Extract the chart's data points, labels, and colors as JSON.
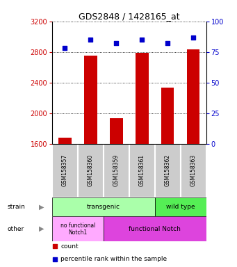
{
  "title": "GDS2848 / 1428165_at",
  "samples": [
    "GSM158357",
    "GSM158360",
    "GSM158359",
    "GSM158361",
    "GSM158362",
    "GSM158363"
  ],
  "counts": [
    1680,
    2750,
    1930,
    2790,
    2330,
    2830
  ],
  "percentiles": [
    78,
    85,
    82,
    85,
    82,
    87
  ],
  "ylim_left": [
    1600,
    3200
  ],
  "ylim_right": [
    0,
    100
  ],
  "yticks_left": [
    1600,
    2000,
    2400,
    2800,
    3200
  ],
  "yticks_right": [
    0,
    25,
    50,
    75,
    100
  ],
  "bar_color": "#cc0000",
  "dot_color": "#0000cc",
  "transgenic_color": "#aaffaa",
  "wildtype_color": "#55ee55",
  "nofunc_color": "#ffaaff",
  "func_color": "#dd44dd",
  "label_color_left": "#cc0000",
  "label_color_right": "#0000cc"
}
